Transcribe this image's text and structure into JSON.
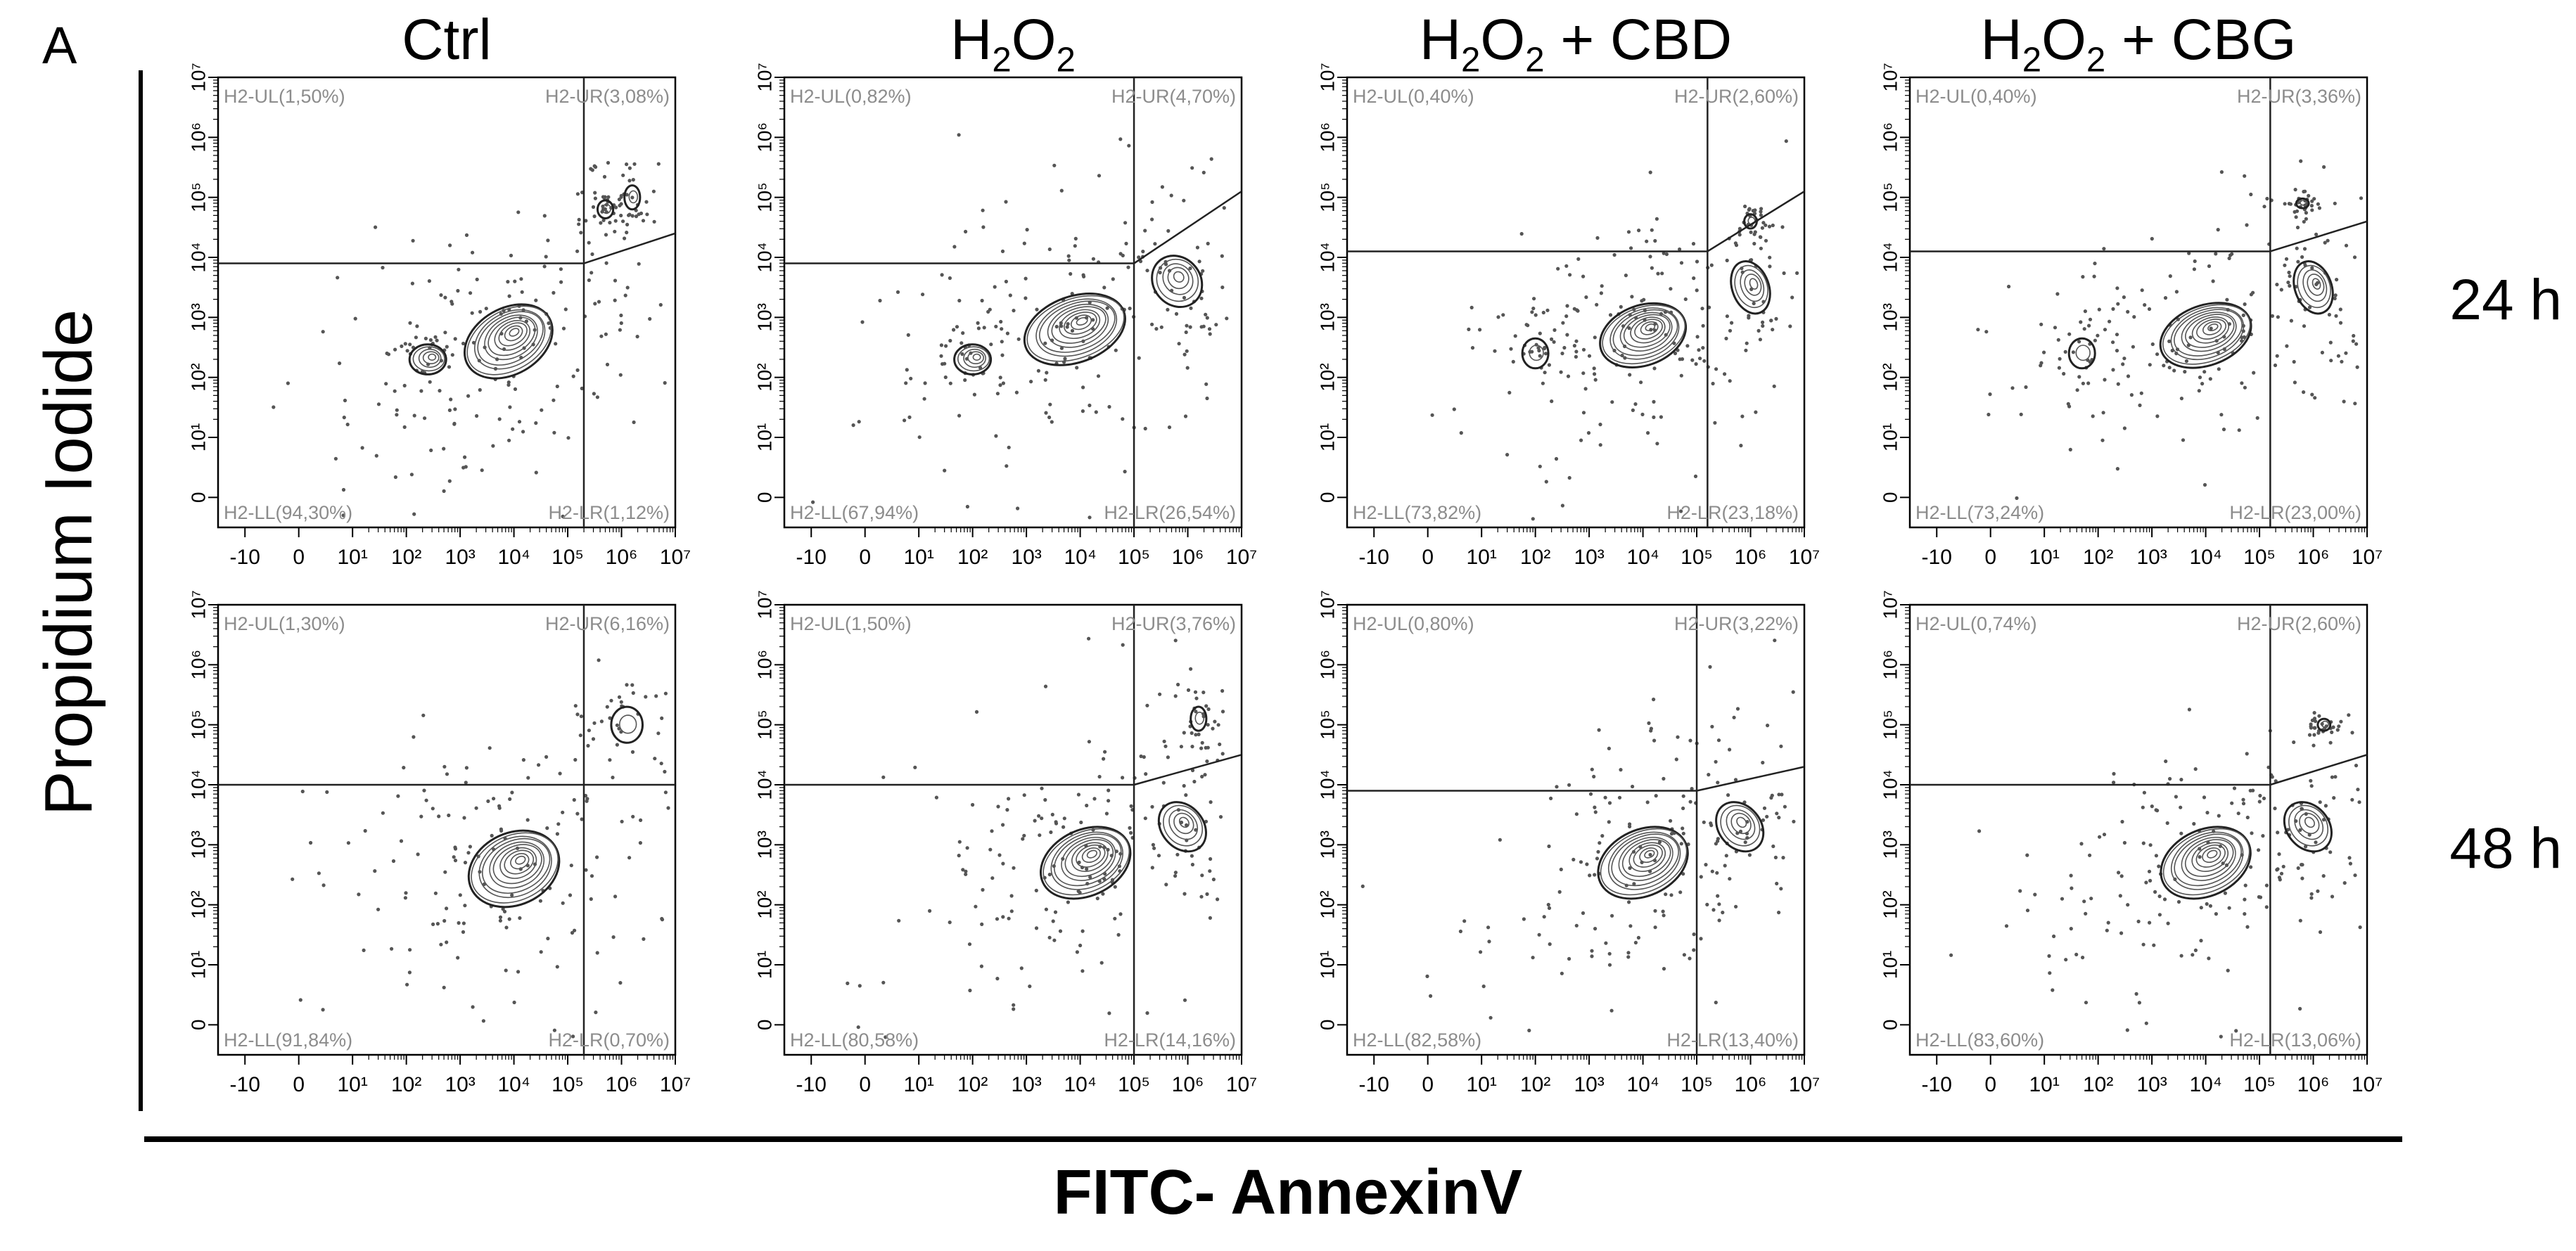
{
  "figure": {
    "panel_letter": "A",
    "conditions": [
      {
        "base": "Ctrl",
        "formula": false,
        "suffix": ""
      },
      {
        "base": "H",
        "formula": true,
        "suffix": ""
      },
      {
        "base": "H",
        "formula": true,
        "suffix": " + CBD"
      },
      {
        "base": "H",
        "formula": true,
        "suffix": " + CBG"
      }
    ],
    "timepoints": [
      "24 h",
      "48 h"
    ],
    "ylabel": "Propidium Iodide",
    "xlabel": "FITC- AnnexinV"
  },
  "chart_data": {
    "type": "scatter",
    "description_of_axes": "log-scale flow cytometry axes",
    "x_ticks": [
      "-10",
      "0",
      "10¹",
      "10²",
      "10³",
      "10⁴",
      "10⁵",
      "10⁶",
      "10⁷"
    ],
    "y_ticks": [
      "0",
      "10¹",
      "10²",
      "10³",
      "10⁴",
      "10⁵",
      "10⁶",
      "10⁷"
    ],
    "xlim_log10": [
      -1.5,
      7
    ],
    "ylim_log10": [
      -0.5,
      7
    ],
    "colors": {
      "contour": "#222222",
      "gate": "#222222",
      "dots": "#555555",
      "quadrant_text": "#8c8c8c"
    },
    "panels": [
      {
        "row": 0,
        "col": 0,
        "timepoint": "24 h",
        "condition": "Ctrl",
        "gate": {
          "vx": 5.3,
          "y_left": 3.9,
          "y_right": 4.4
        },
        "quadrants": {
          "UL": "H2-UL(1,50%)",
          "UR": "H2-UR(3,08%)",
          "LL": "H2-LL(94,30%)",
          "LR": "H2-LR(1,12%)"
        },
        "clusters": [
          {
            "x": 3.9,
            "y": 2.6,
            "rx": 0.9,
            "ry": 0.55,
            "rot": 30
          },
          {
            "x": 2.4,
            "y": 2.3,
            "rx": 0.35,
            "ry": 0.25,
            "rot": 0
          },
          {
            "x": 5.7,
            "y": 4.8,
            "rx": 0.15,
            "ry": 0.15,
            "rot": 0
          },
          {
            "x": 6.2,
            "y": 5.0,
            "rx": 0.15,
            "ry": 0.2,
            "rot": 0
          }
        ]
      },
      {
        "row": 0,
        "col": 1,
        "timepoint": "24 h",
        "condition": "H2O2",
        "gate": {
          "vx": 5.0,
          "y_left": 3.9,
          "y_right": 5.1
        },
        "quadrants": {
          "UL": "H2-UL(0,82%)",
          "UR": "H2-UR(4,70%)",
          "LL": "H2-LL(67,94%)",
          "LR": "H2-LR(26,54%)"
        },
        "clusters": [
          {
            "x": 3.9,
            "y": 2.8,
            "rx": 1.0,
            "ry": 0.55,
            "rot": 20
          },
          {
            "x": 2.0,
            "y": 2.3,
            "rx": 0.35,
            "ry": 0.25,
            "rot": 0
          },
          {
            "x": 5.8,
            "y": 3.6,
            "rx": 0.45,
            "ry": 0.45,
            "rot": 40
          }
        ]
      },
      {
        "row": 0,
        "col": 2,
        "timepoint": "24 h",
        "condition": "H2O2 + CBD",
        "gate": {
          "vx": 5.2,
          "y_left": 4.1,
          "y_right": 5.1
        },
        "quadrants": {
          "UL": "H2-UL(0,40%)",
          "UR": "H2-UR(2,60%)",
          "LL": "H2-LL(73,82%)",
          "LR": "H2-LR(23,18%)"
        },
        "clusters": [
          {
            "x": 4.0,
            "y": 2.7,
            "rx": 0.85,
            "ry": 0.5,
            "rot": 20
          },
          {
            "x": 2.0,
            "y": 2.4,
            "rx": 0.25,
            "ry": 0.25,
            "rot": 0
          },
          {
            "x": 6.0,
            "y": 3.5,
            "rx": 0.35,
            "ry": 0.45,
            "rot": 20
          },
          {
            "x": 6.0,
            "y": 4.6,
            "rx": 0.12,
            "ry": 0.12,
            "rot": 0
          }
        ]
      },
      {
        "row": 0,
        "col": 3,
        "timepoint": "24 h",
        "condition": "H2O2 + CBG",
        "gate": {
          "vx": 5.2,
          "y_left": 4.1,
          "y_right": 4.6
        },
        "quadrants": {
          "UL": "H2-UL(0,40%)",
          "UR": "H2-UR(3,36%)",
          "LL": "H2-LL(73,24%)",
          "LR": "H2-LR(23,00%)"
        },
        "clusters": [
          {
            "x": 4.0,
            "y": 2.7,
            "rx": 0.9,
            "ry": 0.5,
            "rot": 20
          },
          {
            "x": 1.7,
            "y": 2.4,
            "rx": 0.25,
            "ry": 0.25,
            "rot": 0
          },
          {
            "x": 6.0,
            "y": 3.5,
            "rx": 0.35,
            "ry": 0.45,
            "rot": 20
          },
          {
            "x": 5.8,
            "y": 4.9,
            "rx": 0.12,
            "ry": 0.08,
            "rot": 0
          }
        ]
      },
      {
        "row": 1,
        "col": 0,
        "timepoint": "48 h",
        "condition": "Ctrl",
        "gate": {
          "vx": 5.3,
          "y_left": 4.0,
          "y_right": 4.0
        },
        "quadrants": {
          "UL": "H2-UL(1,30%)",
          "UR": "H2-UR(6,16%)",
          "LL": "H2-LL(91,84%)",
          "LR": "H2-LR(0,70%)"
        },
        "clusters": [
          {
            "x": 4.0,
            "y": 2.6,
            "rx": 0.9,
            "ry": 0.6,
            "rot": 25
          },
          {
            "x": 6.1,
            "y": 5.0,
            "rx": 0.3,
            "ry": 0.3,
            "rot": 0
          }
        ]
      },
      {
        "row": 1,
        "col": 1,
        "timepoint": "48 h",
        "condition": "H2O2",
        "gate": {
          "vx": 5.0,
          "y_left": 4.0,
          "y_right": 4.5
        },
        "quadrants": {
          "UL": "H2-UL(1,50%)",
          "UR": "H2-UR(3,76%)",
          "LL": "H2-LL(80,58%)",
          "LR": "H2-LR(14,16%)"
        },
        "clusters": [
          {
            "x": 4.1,
            "y": 2.7,
            "rx": 0.9,
            "ry": 0.55,
            "rot": 25
          },
          {
            "x": 5.9,
            "y": 3.3,
            "rx": 0.4,
            "ry": 0.45,
            "rot": 40
          },
          {
            "x": 6.2,
            "y": 5.1,
            "rx": 0.15,
            "ry": 0.2,
            "rot": 0
          }
        ]
      },
      {
        "row": 1,
        "col": 2,
        "timepoint": "48 h",
        "condition": "H2O2 + CBD",
        "gate": {
          "vx": 5.0,
          "y_left": 3.9,
          "y_right": 4.3
        },
        "quadrants": {
          "UL": "H2-UL(0,80%)",
          "UR": "H2-UR(3,22%)",
          "LL": "H2-LL(82,58%)",
          "LR": "H2-LR(13,40%)"
        },
        "clusters": [
          {
            "x": 4.0,
            "y": 2.7,
            "rx": 0.9,
            "ry": 0.55,
            "rot": 25
          },
          {
            "x": 5.8,
            "y": 3.3,
            "rx": 0.4,
            "ry": 0.45,
            "rot": 40
          }
        ]
      },
      {
        "row": 1,
        "col": 3,
        "timepoint": "48 h",
        "condition": "H2O2 + CBG",
        "gate": {
          "vx": 5.2,
          "y_left": 4.0,
          "y_right": 4.5
        },
        "quadrants": {
          "UL": "H2-UL(0,74%)",
          "UR": "H2-UR(2,60%)",
          "LL": "H2-LL(83,60%)",
          "LR": "H2-LR(13,06%)"
        },
        "clusters": [
          {
            "x": 4.0,
            "y": 2.7,
            "rx": 0.9,
            "ry": 0.55,
            "rot": 25
          },
          {
            "x": 5.9,
            "y": 3.3,
            "rx": 0.4,
            "ry": 0.45,
            "rot": 40
          },
          {
            "x": 6.2,
            "y": 5.0,
            "rx": 0.12,
            "ry": 0.1,
            "rot": 0
          }
        ]
      }
    ]
  }
}
